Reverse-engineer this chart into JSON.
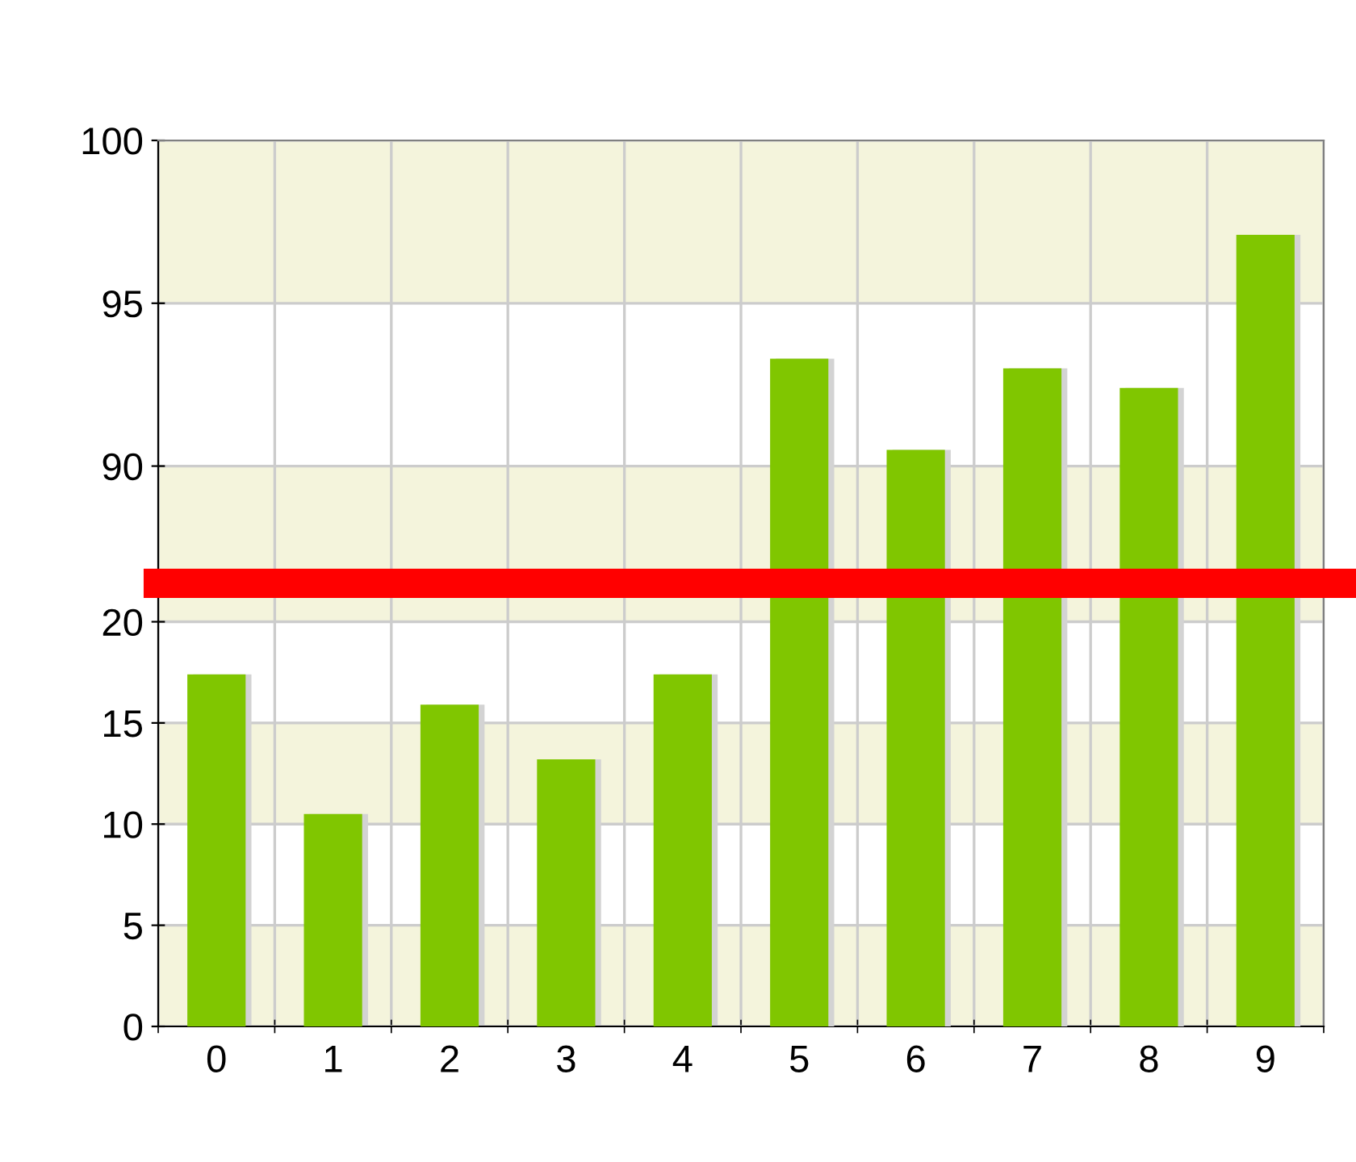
{
  "chart_data": [
    {
      "type": "bar",
      "categories": [
        "0",
        "1",
        "2",
        "3",
        "4",
        "5",
        "6",
        "7",
        "8",
        "9"
      ],
      "values": [
        null,
        null,
        null,
        null,
        null,
        93.3,
        90.5,
        93.0,
        92.4,
        97.1
      ],
      "color": "#80c600",
      "ylim": [
        86.4,
        100
      ],
      "yticks": [
        90,
        95,
        100
      ],
      "tick_labels": "y",
      "bands": [
        {
          "axis": "y",
          "from": 86.4,
          "to": 90,
          "color": "#f4f4dc"
        },
        {
          "axis": "y",
          "from": 95,
          "to": 100,
          "color": "#f4f4dc"
        }
      ],
      "grid": true
    },
    {
      "type": "bar",
      "categories": [
        "0",
        "1",
        "2",
        "3",
        "4",
        "5",
        "6",
        "7",
        "8",
        "9"
      ],
      "values": [
        17.4,
        10.5,
        15.9,
        13.2,
        17.4,
        null,
        null,
        null,
        null,
        null
      ],
      "color": "#80c600",
      "ylim": [
        0,
        21.9
      ],
      "yticks": [
        0,
        5,
        10,
        15,
        20
      ],
      "bands": [
        {
          "axis": "y",
          "from": 0,
          "to": 5,
          "color": "#f4f4dc"
        },
        {
          "axis": "y",
          "from": 10,
          "to": 15,
          "color": "#f4f4dc"
        },
        {
          "axis": "y",
          "from": 20,
          "to": 21.9,
          "color": "#f4f4dc"
        }
      ],
      "grid": true
    }
  ]
}
